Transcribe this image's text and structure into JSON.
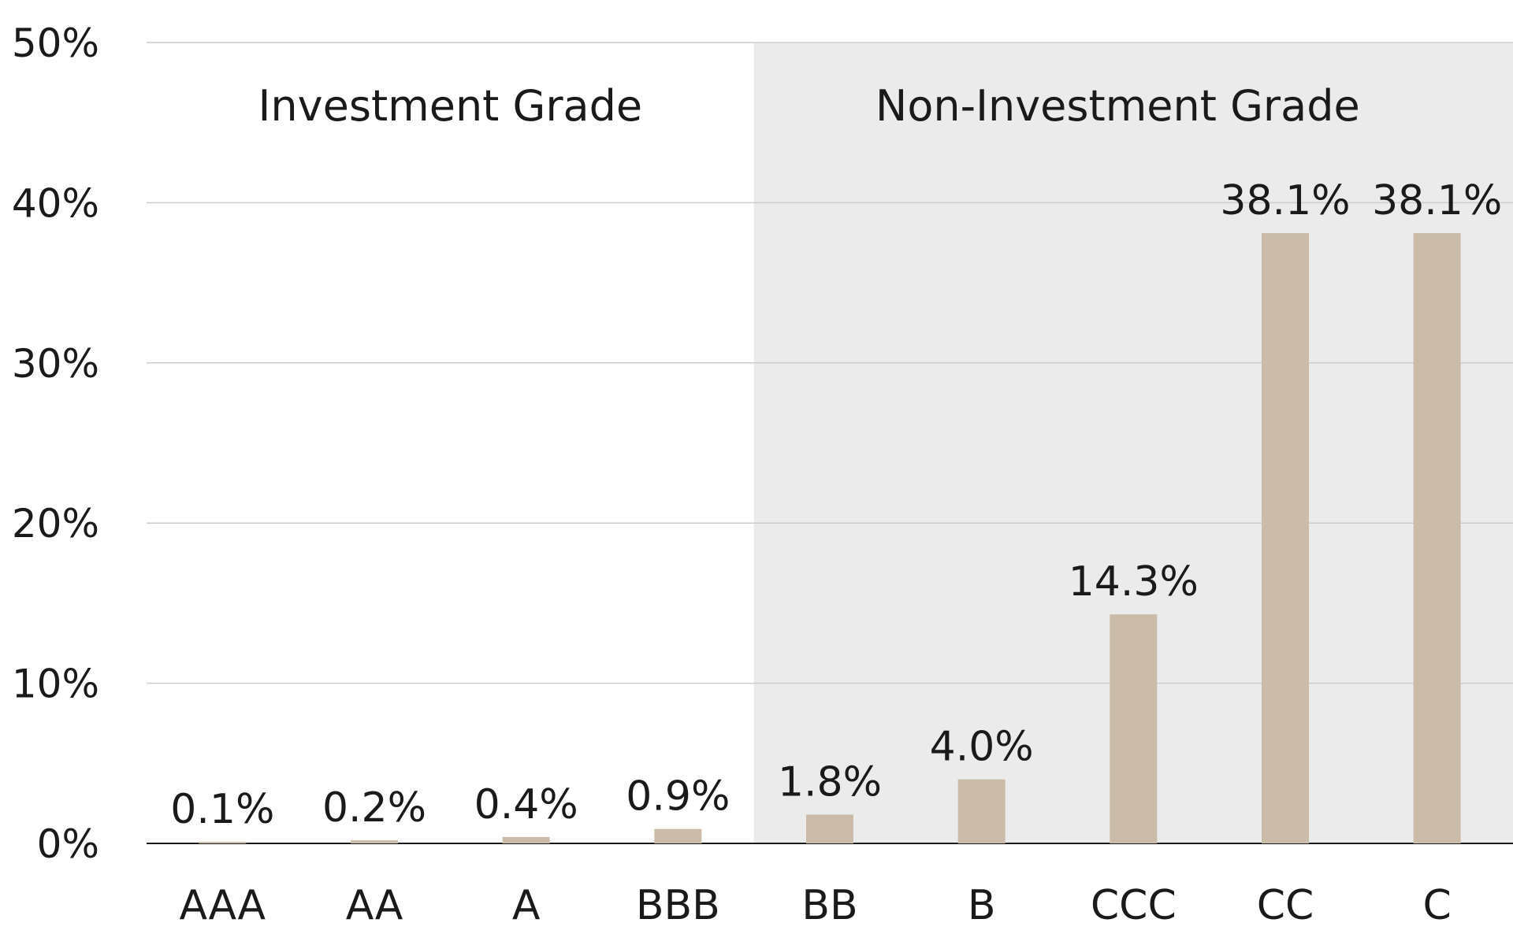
{
  "chart_data": {
    "type": "bar",
    "categories": [
      "AAA",
      "AA",
      "A",
      "BBB",
      "BB",
      "B",
      "CCC",
      "CC",
      "C"
    ],
    "values": [
      0.1,
      0.2,
      0.4,
      0.9,
      1.8,
      4.0,
      14.3,
      38.1,
      38.1
    ],
    "data_labels": [
      "0.1%",
      "0.2%",
      "0.4%",
      "0.9%",
      "1.8%",
      "4.0%",
      "14.3%",
      "38.1%",
      "38.1%"
    ],
    "ylim": [
      0,
      50
    ],
    "yticks": [
      0,
      10,
      20,
      30,
      40,
      50
    ],
    "ytick_labels": [
      "0%",
      "10%",
      "20%",
      "30%",
      "40%",
      "50%"
    ],
    "grid": true,
    "regions": [
      {
        "label": "Investment Grade",
        "categories": [
          "AAA",
          "AA",
          "A",
          "BBB"
        ],
        "shaded": false
      },
      {
        "label": "Non-Investment Grade",
        "categories": [
          "BB",
          "B",
          "CCC",
          "CC",
          "C"
        ],
        "shaded": true
      }
    ],
    "colors": {
      "bar": "#cbbba9",
      "shade": "#ebebeb",
      "grid": "#cccccc",
      "axis": "#1a1a1a"
    }
  }
}
